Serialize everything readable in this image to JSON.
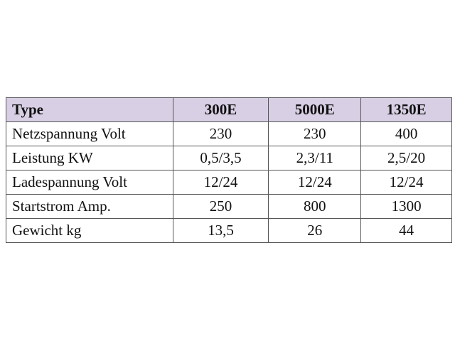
{
  "table": {
    "header": [
      "Type",
      "300E",
      "5000E",
      "1350E"
    ],
    "rows": [
      [
        "Netzspannung Volt",
        "230",
        "230",
        "400"
      ],
      [
        "Leistung KW",
        "0,5/3,5",
        "2,3/11",
        "2,5/20"
      ],
      [
        "Ladespannung Volt",
        "12/24",
        "12/24",
        "12/24"
      ],
      [
        "Startstrom Amp.",
        "250",
        "800",
        "1300"
      ],
      [
        "Gewicht kg",
        "13,5",
        "26",
        "44"
      ]
    ]
  }
}
